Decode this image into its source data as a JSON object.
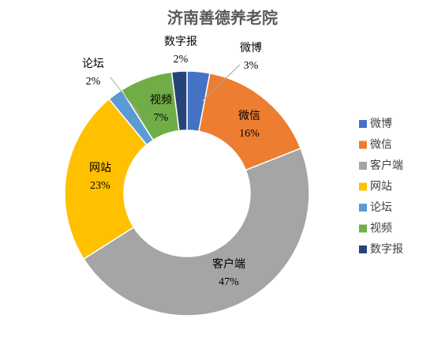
{
  "chart_data": {
    "type": "donut",
    "title": "济南善德养老院",
    "categories": [
      "微博",
      "微信",
      "客户端",
      "网站",
      "论坛",
      "视频",
      "数字报"
    ],
    "values": [
      3,
      16,
      47,
      23,
      2,
      7,
      2
    ],
    "value_labels": [
      "3%",
      "16%",
      "47%",
      "23%",
      "2%",
      "7%",
      "2%"
    ],
    "colors": [
      "#4472c4",
      "#ed7d31",
      "#a5a5a5",
      "#ffc000",
      "#5b9bd5",
      "#70ad47",
      "#264478"
    ],
    "legend": "right"
  }
}
